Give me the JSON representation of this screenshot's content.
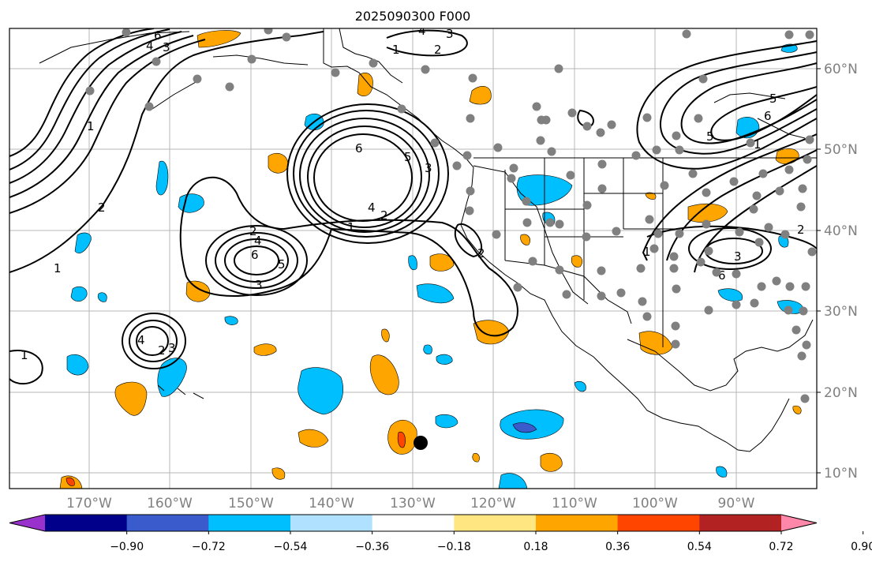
{
  "title": "2025090300 F000",
  "map": {
    "projection": "PlateCarree",
    "lon_range": [
      -180,
      -78
    ],
    "lat_range": [
      8,
      65
    ],
    "lat_ticks": [
      "10°N",
      "20°N",
      "30°N",
      "40°N",
      "50°N",
      "60°N"
    ],
    "lon_ticks": [
      "170°W",
      "160°W",
      "150°W",
      "140°W",
      "130°W",
      "120°W",
      "110°W",
      "100°W",
      "90°W"
    ],
    "grid": true,
    "contour_labels": [
      "1",
      "2",
      "3",
      "4",
      "5",
      "6",
      "1",
      "2",
      "3",
      "4",
      "5",
      "6",
      "1",
      "2",
      "3",
      "4",
      "1",
      "2",
      "3",
      "4",
      "6",
      "1",
      "2",
      "3",
      "4",
      "5",
      "6",
      "1",
      "2",
      "3",
      "4",
      "5"
    ],
    "marker": "tropical cyclone position (black dot)"
  },
  "colorbar": {
    "ticks": [
      "−0.90",
      "−0.72",
      "−0.54",
      "−0.36",
      "−0.18",
      "0.18",
      "0.36",
      "0.54",
      "0.72",
      "0.90"
    ],
    "colors": [
      "#9932CC",
      "#00008B",
      "#3A5BCC",
      "#00BFFF",
      "#B0E2FF",
      "#FFFFFF",
      "#FFE680",
      "#FFA500",
      "#FF4500",
      "#B22222",
      "#FF88AA"
    ]
  },
  "colors": {
    "shade_neg_strong": "#3A5BCC",
    "shade_neg": "#00BFFF",
    "shade_neg_light": "#B0E2FF",
    "shade_pos_light": "#FFE680",
    "shade_pos": "#FFA500",
    "shade_pos_strong": "#FF4500",
    "station_dot": "#808080",
    "grid": "#999999"
  }
}
